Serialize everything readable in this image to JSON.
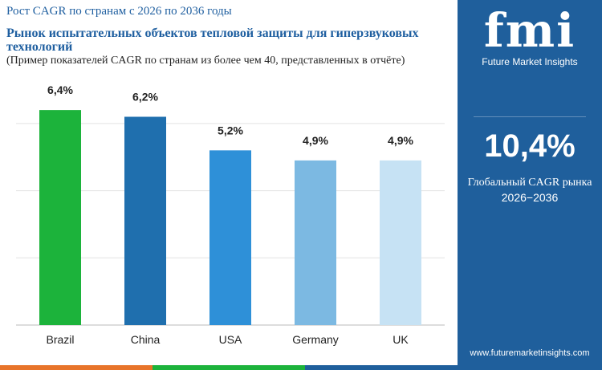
{
  "chart_data": {
    "type": "bar",
    "supertitle": "Рост CAGR по странам с 2026 по 2036 годы",
    "title": "Рынок испытательных объектов тепловой защиты для гиперзвуковых технологий",
    "subtitle": "(Пример показателей CAGR по странам из более чем 40, представленных в отчёте)",
    "categories": [
      "Brazil",
      "China",
      "USA",
      "Germany",
      "UK"
    ],
    "values": [
      6.4,
      6.2,
      5.2,
      4.9,
      4.9
    ],
    "value_labels": [
      "6,4%",
      "6,2%",
      "5,2%",
      "4,9%",
      "4,9%"
    ],
    "colors": [
      "#1cb33b",
      "#1f6fae",
      "#2e90d8",
      "#7cb9e2",
      "#c6e2f4"
    ],
    "ylim": [
      0,
      7
    ],
    "yticks": [
      0,
      2,
      4,
      6
    ],
    "grid": true
  },
  "side_panel": {
    "logo": "fmi",
    "brand": "Future Market Insights",
    "headline_value": "10,4%",
    "headline_label": "Глобальный CAGR рынка",
    "period": "2026−2036",
    "website": "www.futuremarketinsights.com"
  }
}
